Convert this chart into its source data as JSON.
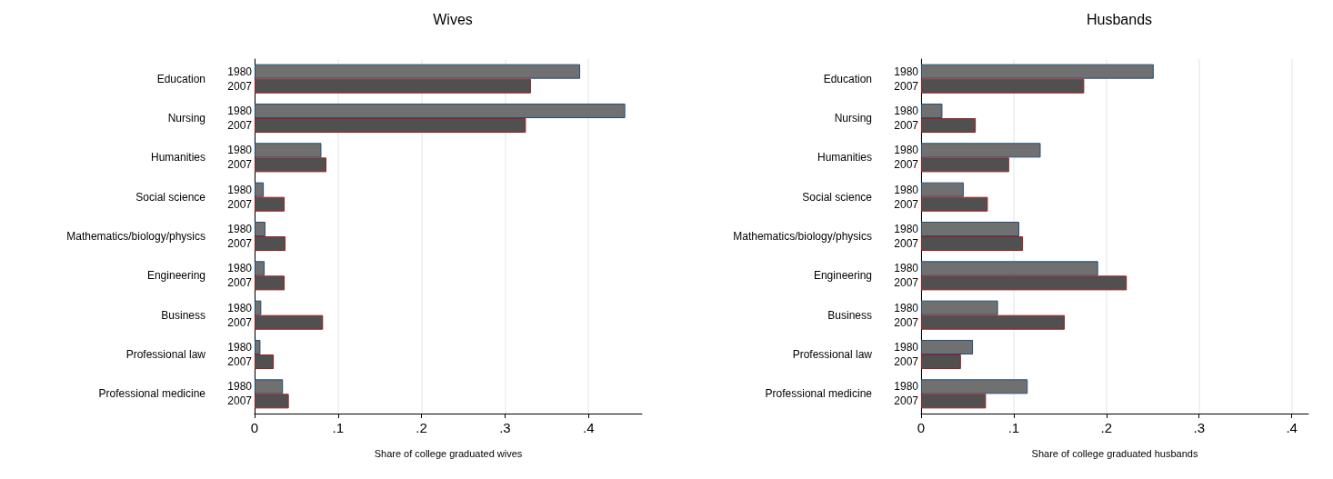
{
  "chart_data": [
    {
      "type": "bar",
      "orientation": "horizontal",
      "title": "Wives",
      "xlabel": "Share of college graduated wives",
      "categories": [
        "Education",
        "Nursing",
        "Humanities",
        "Social science",
        "Mathematics/biology/physics",
        "Engineering",
        "Business",
        "Professional law",
        "Professional medicine"
      ],
      "series": [
        {
          "name": "1980",
          "color": "#707070",
          "values": [
            0.39,
            0.444,
            0.08,
            0.011,
            0.013,
            0.012,
            0.008,
            0.007,
            0.034
          ]
        },
        {
          "name": "2007",
          "color": "#505050",
          "values": [
            0.331,
            0.325,
            0.086,
            0.036,
            0.037,
            0.036,
            0.082,
            0.023,
            0.041
          ]
        }
      ],
      "xlim": [
        0,
        0.464
      ],
      "xticks": [
        0,
        {
          "value": 0.1,
          "label": ".1"
        },
        {
          "value": 0.2,
          "label": ".2"
        },
        {
          "value": 0.3,
          "label": ".3"
        },
        {
          "value": 0.4,
          "label": ".4"
        }
      ],
      "grid": "x",
      "legend": false
    },
    {
      "type": "bar",
      "orientation": "horizontal",
      "title": "Husbands",
      "xlabel": "Share of college graduated husbands",
      "categories": [
        "Education",
        "Nursing",
        "Humanities",
        "Social science",
        "Mathematics/biology/physics",
        "Engineering",
        "Business",
        "Professional law",
        "Professional medicine"
      ],
      "series": [
        {
          "name": "1980",
          "color": "#707070",
          "values": [
            0.251,
            0.023,
            0.129,
            0.046,
            0.106,
            0.191,
            0.083,
            0.056,
            0.115
          ]
        },
        {
          "name": "2007",
          "color": "#505050",
          "values": [
            0.176,
            0.059,
            0.095,
            0.072,
            0.11,
            0.222,
            0.155,
            0.043,
            0.07
          ]
        }
      ],
      "xlim": [
        0,
        0.418
      ],
      "xticks": [
        0,
        {
          "value": 0.1,
          "label": ".1"
        },
        {
          "value": 0.2,
          "label": ".2"
        },
        {
          "value": 0.3,
          "label": ".3"
        },
        {
          "value": 0.4,
          "label": ".4"
        }
      ],
      "grid": "x",
      "legend": false
    }
  ]
}
